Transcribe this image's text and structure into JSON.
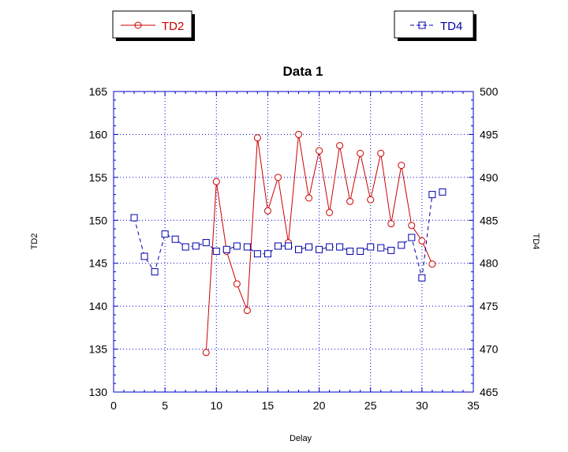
{
  "chart_data": {
    "type": "line",
    "title": "Data 1",
    "xlabel": "Delay",
    "ylabel_left": "TD2",
    "ylabel_right": "TD4",
    "xlim": [
      0,
      35
    ],
    "ylim_left": [
      130,
      165
    ],
    "ylim_right": [
      465,
      500
    ],
    "x_ticks": [
      "0",
      "5",
      "10",
      "15",
      "20",
      "25",
      "30",
      "35"
    ],
    "y_left_ticks": [
      "130",
      "135",
      "140",
      "145",
      "150",
      "155",
      "160",
      "165"
    ],
    "y_right_ticks": [
      "465",
      "470",
      "475",
      "480",
      "485",
      "490",
      "495",
      "500"
    ],
    "grid": true,
    "series": [
      {
        "name": "TD2",
        "axis": "left",
        "color": "#cc0000",
        "marker": "circle",
        "line": "solid",
        "x": [
          9,
          10,
          11,
          12,
          13,
          14,
          15,
          16,
          17,
          18,
          19,
          20,
          21,
          22,
          23,
          24,
          25,
          26,
          27,
          28,
          29,
          30,
          31
        ],
        "y": [
          134.6,
          154.5,
          146.4,
          142.6,
          139.5,
          159.6,
          151.1,
          155.0,
          147.4,
          160.0,
          152.6,
          158.1,
          150.9,
          158.7,
          152.2,
          157.8,
          152.4,
          157.8,
          149.6,
          156.4,
          149.4,
          147.6,
          144.9
        ]
      },
      {
        "name": "TD4",
        "axis": "right",
        "color": "#0000aa",
        "marker": "square",
        "line": "dashed",
        "x": [
          2,
          3,
          4,
          5,
          6,
          7,
          8,
          9,
          10,
          11,
          12,
          13,
          14,
          15,
          16,
          17,
          18,
          19,
          20,
          21,
          22,
          23,
          24,
          25,
          26,
          27,
          28,
          29,
          30,
          31,
          32
        ],
        "y": [
          485.3,
          480.8,
          479.0,
          483.4,
          482.8,
          481.9,
          482.0,
          482.4,
          481.4,
          481.6,
          482.0,
          481.9,
          481.1,
          481.1,
          482.0,
          482.0,
          481.6,
          481.9,
          481.6,
          481.9,
          481.9,
          481.4,
          481.4,
          481.9,
          481.8,
          481.5,
          482.1,
          483.0,
          478.3,
          488.0,
          488.3
        ]
      }
    ],
    "legend": [
      {
        "label": "TD2",
        "placement": "top-left"
      },
      {
        "label": "TD4",
        "placement": "top-right"
      }
    ]
  }
}
